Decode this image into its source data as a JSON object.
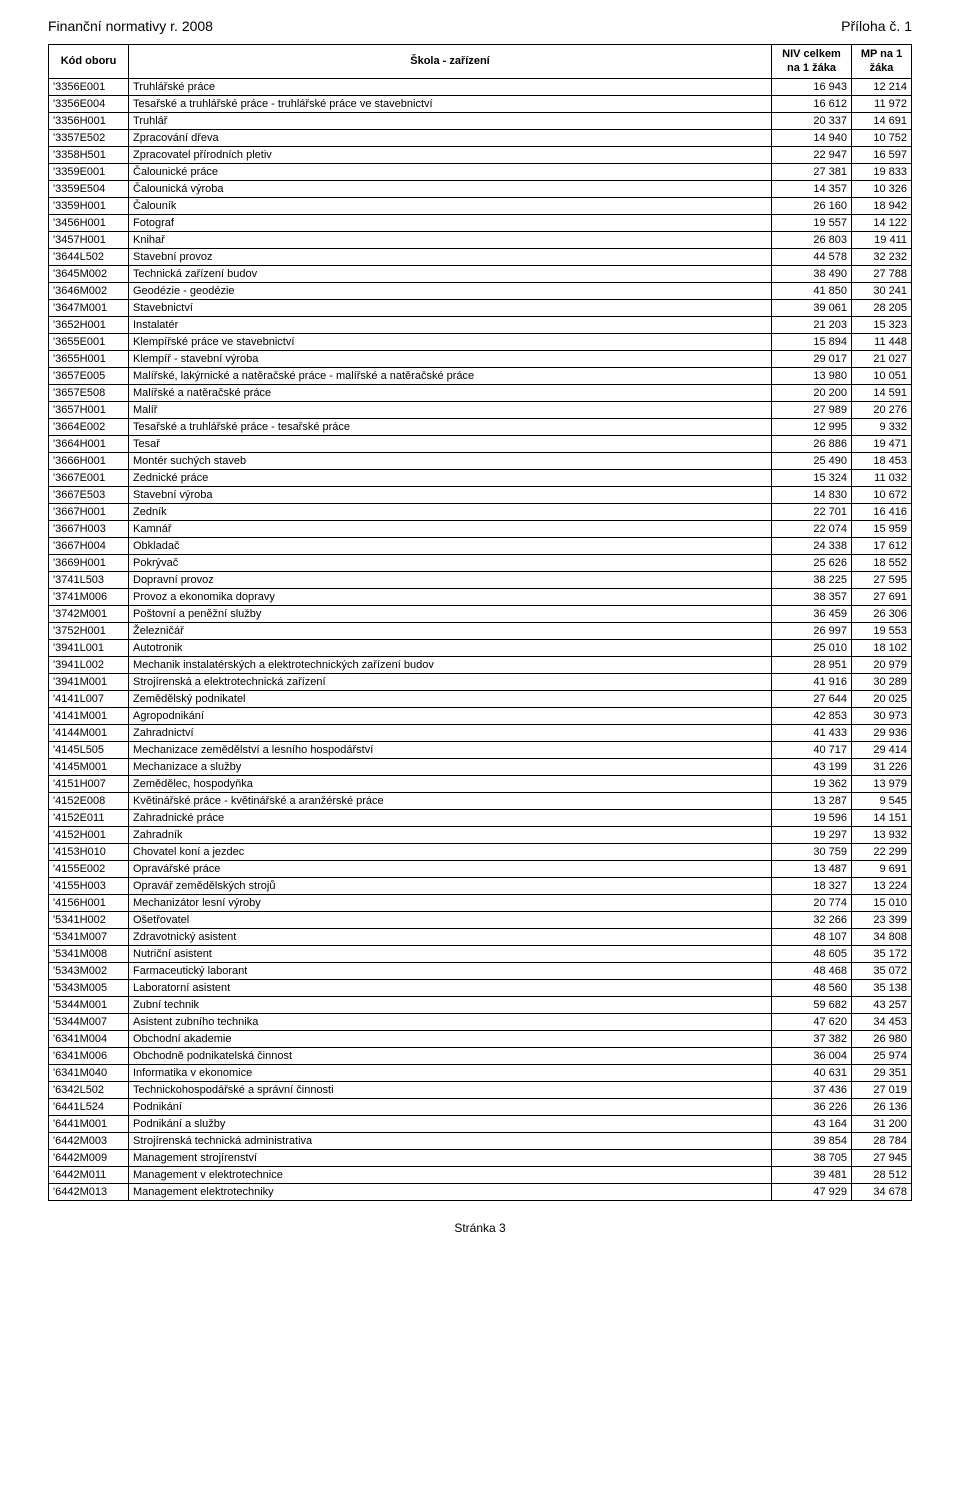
{
  "header_left": "Finanční normativy r. 2008",
  "header_right": "Příloha č. 1",
  "footer": "Stránka 3",
  "columns": {
    "kod": "Kód\noboru",
    "skola": "Škola\n- zařízení",
    "niv": "NIV celkem\nna 1 žáka",
    "mp": "MP na\n1 žáka"
  },
  "rows": [
    {
      "kod": "'3356E001",
      "skola": "Truhlářské práce",
      "niv": "16 943",
      "mp": "12 214"
    },
    {
      "kod": "'3356E004",
      "skola": "Tesařské a truhlářské práce - truhlářské práce ve stavebnictví",
      "niv": "16 612",
      "mp": "11 972"
    },
    {
      "kod": "'3356H001",
      "skola": "Truhlář",
      "niv": "20 337",
      "mp": "14 691"
    },
    {
      "kod": "'3357E502",
      "skola": "Zpracování dřeva",
      "niv": "14 940",
      "mp": "10 752"
    },
    {
      "kod": "'3358H501",
      "skola": "Zpracovatel přírodních pletiv",
      "niv": "22 947",
      "mp": "16 597"
    },
    {
      "kod": "'3359E001",
      "skola": "Čalounické práce",
      "niv": "27 381",
      "mp": "19 833"
    },
    {
      "kod": "'3359E504",
      "skola": "Čalounická výroba",
      "niv": "14 357",
      "mp": "10 326"
    },
    {
      "kod": "'3359H001",
      "skola": "Čalouník",
      "niv": "26 160",
      "mp": "18 942"
    },
    {
      "kod": "'3456H001",
      "skola": "Fotograf",
      "niv": "19 557",
      "mp": "14 122"
    },
    {
      "kod": "'3457H001",
      "skola": "Knihař",
      "niv": "26 803",
      "mp": "19 411"
    },
    {
      "kod": "'3644L502",
      "skola": "Stavební provoz",
      "niv": "44 578",
      "mp": "32 232"
    },
    {
      "kod": "'3645M002",
      "skola": "Technická zařízení budov",
      "niv": "38 490",
      "mp": "27 788"
    },
    {
      "kod": "'3646M002",
      "skola": "Geodézie - geodézie",
      "niv": "41 850",
      "mp": "30 241"
    },
    {
      "kod": "'3647M001",
      "skola": "Stavebnictví",
      "niv": "39 061",
      "mp": "28 205"
    },
    {
      "kod": "'3652H001",
      "skola": "Instalatér",
      "niv": "21 203",
      "mp": "15 323"
    },
    {
      "kod": "'3655E001",
      "skola": "Klempířské práce ve stavebnictví",
      "niv": "15 894",
      "mp": "11 448"
    },
    {
      "kod": "'3655H001",
      "skola": "Klempíř - stavební výroba",
      "niv": "29 017",
      "mp": "21 027"
    },
    {
      "kod": "'3657E005",
      "skola": "Malířské, lakýrnické a natěračské práce - malířské a natěračské práce",
      "niv": "13 980",
      "mp": "10 051"
    },
    {
      "kod": "'3657E508",
      "skola": "Malířské a natěračské práce",
      "niv": "20 200",
      "mp": "14 591"
    },
    {
      "kod": "'3657H001",
      "skola": "Malíř",
      "niv": "27 989",
      "mp": "20 276"
    },
    {
      "kod": "'3664E002",
      "skola": "Tesařské a truhlářské práce - tesařské práce",
      "niv": "12 995",
      "mp": "9 332"
    },
    {
      "kod": "'3664H001",
      "skola": "Tesař",
      "niv": "26 886",
      "mp": "19 471"
    },
    {
      "kod": "'3666H001",
      "skola": "Montér suchých staveb",
      "niv": "25 490",
      "mp": "18 453"
    },
    {
      "kod": "'3667E001",
      "skola": "Zednické práce",
      "niv": "15 324",
      "mp": "11 032"
    },
    {
      "kod": "'3667E503",
      "skola": "Stavební výroba",
      "niv": "14 830",
      "mp": "10 672"
    },
    {
      "kod": "'3667H001",
      "skola": "Zedník",
      "niv": "22 701",
      "mp": "16 416"
    },
    {
      "kod": "'3667H003",
      "skola": "Kamnář",
      "niv": "22 074",
      "mp": "15 959"
    },
    {
      "kod": "'3667H004",
      "skola": "Obkladač",
      "niv": "24 338",
      "mp": "17 612"
    },
    {
      "kod": "'3669H001",
      "skola": "Pokrývač",
      "niv": "25 626",
      "mp": "18 552"
    },
    {
      "kod": "'3741L503",
      "skola": "Dopravní provoz",
      "niv": "38 225",
      "mp": "27 595"
    },
    {
      "kod": "'3741M006",
      "skola": "Provoz a ekonomika dopravy",
      "niv": "38 357",
      "mp": "27 691"
    },
    {
      "kod": "'3742M001",
      "skola": "Poštovní a peněžní služby",
      "niv": "36 459",
      "mp": "26 306"
    },
    {
      "kod": "'3752H001",
      "skola": "Železničář",
      "niv": "26 997",
      "mp": "19 553"
    },
    {
      "kod": "'3941L001",
      "skola": "Autotronik",
      "niv": "25 010",
      "mp": "18 102"
    },
    {
      "kod": "'3941L002",
      "skola": "Mechanik instalatérských a elektrotechnických zařízení budov",
      "niv": "28 951",
      "mp": "20 979"
    },
    {
      "kod": "'3941M001",
      "skola": "Strojírenská a elektrotechnická zařízení",
      "niv": "41 916",
      "mp": "30 289"
    },
    {
      "kod": "'4141L007",
      "skola": "Zemědělský podnikatel",
      "niv": "27 644",
      "mp": "20 025"
    },
    {
      "kod": "'4141M001",
      "skola": "Agropodnikání",
      "niv": "42 853",
      "mp": "30 973"
    },
    {
      "kod": "'4144M001",
      "skola": "Zahradnictví",
      "niv": "41 433",
      "mp": "29 936"
    },
    {
      "kod": "'4145L505",
      "skola": "Mechanizace zemědělství a lesního hospodářství",
      "niv": "40 717",
      "mp": "29 414"
    },
    {
      "kod": "'4145M001",
      "skola": "Mechanizace a služby",
      "niv": "43 199",
      "mp": "31 226"
    },
    {
      "kod": "'4151H007",
      "skola": "Zemědělec, hospodyňka",
      "niv": "19 362",
      "mp": "13 979"
    },
    {
      "kod": "'4152E008",
      "skola": "Květinářské práce - květinářské a aranžérské práce",
      "niv": "13 287",
      "mp": "9 545"
    },
    {
      "kod": "'4152E011",
      "skola": "Zahradnické práce",
      "niv": "19 596",
      "mp": "14 151"
    },
    {
      "kod": "'4152H001",
      "skola": "Zahradník",
      "niv": "19 297",
      "mp": "13 932"
    },
    {
      "kod": "'4153H010",
      "skola": "Chovatel koní a jezdec",
      "niv": "30 759",
      "mp": "22 299"
    },
    {
      "kod": "'4155E002",
      "skola": "Opravářské práce",
      "niv": "13 487",
      "mp": "9 691"
    },
    {
      "kod": "'4155H003",
      "skola": "Opravář zemědělských strojů",
      "niv": "18 327",
      "mp": "13 224"
    },
    {
      "kod": "'4156H001",
      "skola": "Mechanizátor lesní výroby",
      "niv": "20 774",
      "mp": "15 010"
    },
    {
      "kod": "'5341H002",
      "skola": "Ošetřovatel",
      "niv": "32 266",
      "mp": "23 399"
    },
    {
      "kod": "'5341M007",
      "skola": "Zdravotnický asistent",
      "niv": "48 107",
      "mp": "34 808"
    },
    {
      "kod": "'5341M008",
      "skola": "Nutriční asistent",
      "niv": "48 605",
      "mp": "35 172"
    },
    {
      "kod": "'5343M002",
      "skola": "Farmaceutický laborant",
      "niv": "48 468",
      "mp": "35 072"
    },
    {
      "kod": "'5343M005",
      "skola": "Laboratorní asistent",
      "niv": "48 560",
      "mp": "35 138"
    },
    {
      "kod": "'5344M001",
      "skola": "Zubní technik",
      "niv": "59 682",
      "mp": "43 257"
    },
    {
      "kod": "'5344M007",
      "skola": "Asistent zubního technika",
      "niv": "47 620",
      "mp": "34 453"
    },
    {
      "kod": "'6341M004",
      "skola": "Obchodní akademie",
      "niv": "37 382",
      "mp": "26 980"
    },
    {
      "kod": "'6341M006",
      "skola": "Obchodně podnikatelská činnost",
      "niv": "36 004",
      "mp": "25 974"
    },
    {
      "kod": "'6341M040",
      "skola": "Informatika v ekonomice",
      "niv": "40 631",
      "mp": "29 351"
    },
    {
      "kod": "'6342L502",
      "skola": "Technickohospodářské a správní činnosti",
      "niv": "37 436",
      "mp": "27 019"
    },
    {
      "kod": "'6441L524",
      "skola": "Podnikání",
      "niv": "36 226",
      "mp": "26 136"
    },
    {
      "kod": "'6441M001",
      "skola": "Podnikání a služby",
      "niv": "43 164",
      "mp": "31 200"
    },
    {
      "kod": "'6442M003",
      "skola": "Strojírenská technická administrativa",
      "niv": "39 854",
      "mp": "28 784"
    },
    {
      "kod": "'6442M009",
      "skola": "Management strojírenství",
      "niv": "38 705",
      "mp": "27 945"
    },
    {
      "kod": "'6442M011",
      "skola": "Management v elektrotechnice",
      "niv": "39 481",
      "mp": "28 512"
    },
    {
      "kod": "'6442M013",
      "skola": "Management elektrotechniky",
      "niv": "47 929",
      "mp": "34 678"
    }
  ]
}
